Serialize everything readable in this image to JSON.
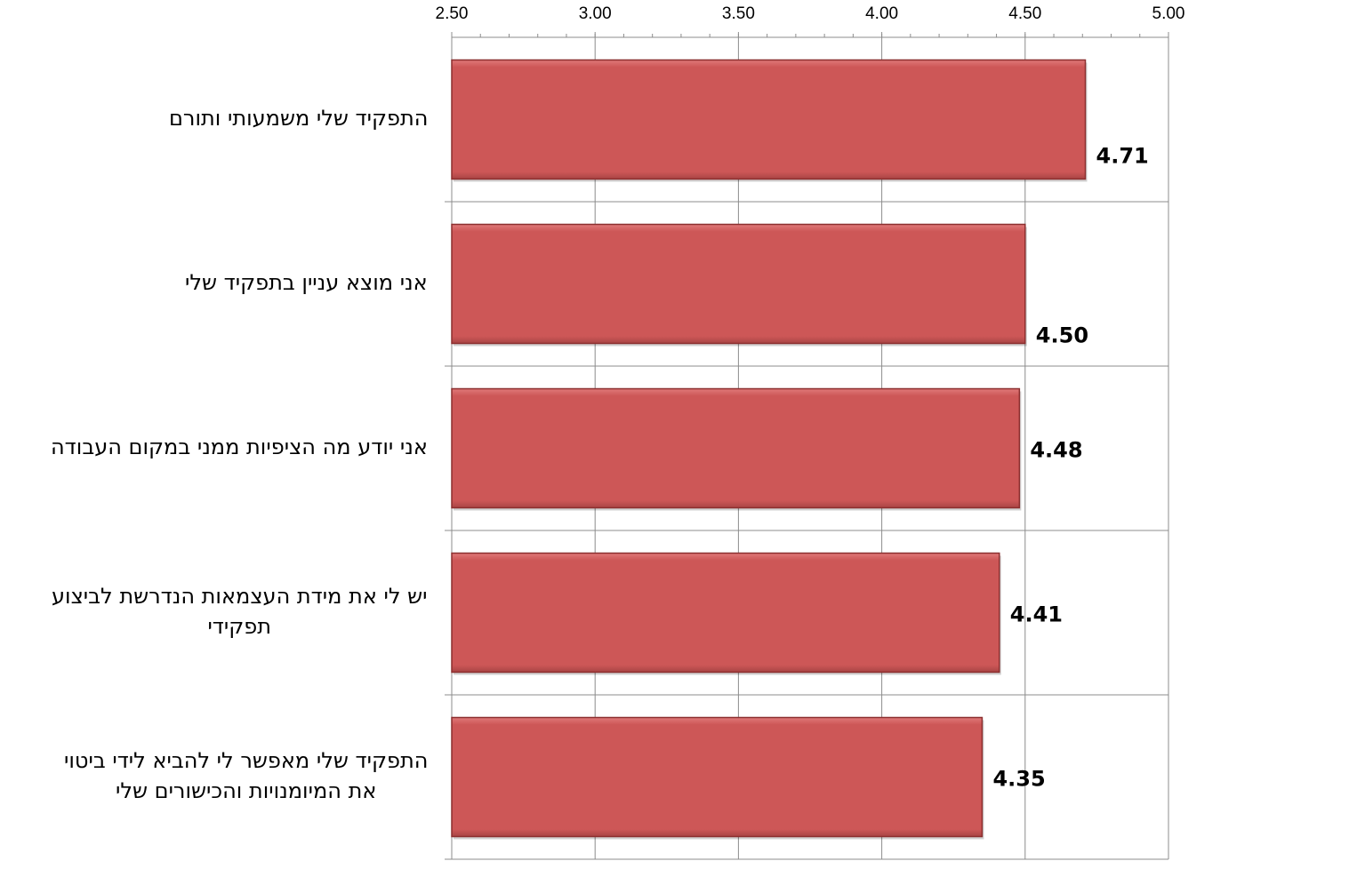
{
  "chart_data": {
    "type": "bar",
    "orientation": "horizontal",
    "categories": [
      "התפקיד שלי משמעותי ותורם",
      "אני מוצא עניין בתפקיד שלי",
      "אני יודע מה הציפיות ממני במקום העבודה",
      "יש לי את מידת העצמאות הנדרשת לביצוע תפקידי",
      "התפקיד שלי מאפשר לי להביא לידי ביטוי את המיומנויות והכישורים שלי"
    ],
    "category_lines": [
      [
        "התפקיד שלי משמעותי ותורם"
      ],
      [
        "אני מוצא עניין בתפקיד שלי"
      ],
      [
        "אני יודע מה הציפיות ממני במקום העבודה"
      ],
      [
        "יש לי את מידת העצמאות הנדרשת לביצוע",
        "תפקידי"
      ],
      [
        "התפקיד שלי מאפשר לי להביא לידי ביטוי",
        "את המיומנויות והכישורים שלי"
      ]
    ],
    "values": [
      4.71,
      4.5,
      4.48,
      4.41,
      4.35
    ],
    "value_labels": [
      "4.71",
      "4.50",
      "4.48",
      "4.41",
      "4.35"
    ],
    "xlim": [
      2.5,
      5.0
    ],
    "x_ticks": [
      "2.50",
      "3.00",
      "3.50",
      "4.00",
      "4.50",
      "5.00"
    ],
    "x_axis_position": "top",
    "grid": true,
    "bar_color": "#cd5757",
    "bar_edge_color": "#8c2f2f",
    "grid_color": "#8c8c8c"
  }
}
